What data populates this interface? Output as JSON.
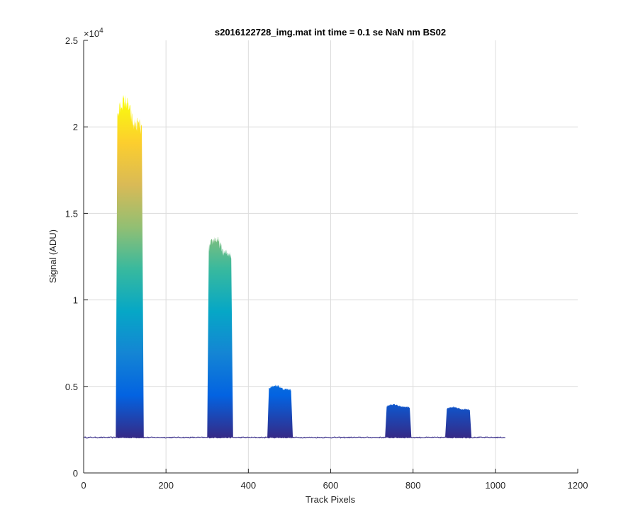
{
  "chart_data": {
    "type": "line",
    "title": "s2016122728_img.mat int time = 0.1 se  NaN nm BS02",
    "xlabel": "Track Pixels",
    "ylabel": "Signal (ADU)",
    "xlim": [
      0,
      1200
    ],
    "ylim": [
      0,
      25000
    ],
    "x_ticks": [
      0,
      200,
      400,
      600,
      800,
      1000,
      1200
    ],
    "x_tick_labels": [
      "0",
      "200",
      "400",
      "600",
      "800",
      "1000",
      "1200"
    ],
    "y_ticks": [
      0,
      5000,
      10000,
      15000,
      20000,
      25000
    ],
    "y_tick_labels": [
      "0",
      "0.5",
      "1",
      "1.5",
      "2",
      "2.5"
    ],
    "y_exponent_base": "×10",
    "y_exponent_power": "4",
    "grid": true,
    "baseline": 2050,
    "baseline_x_range": [
      0,
      1024
    ],
    "colormap": [
      "#352a87",
      "#0363e1",
      "#1485d4",
      "#06a7c6",
      "#38b99e",
      "#92bf73",
      "#d9ba56",
      "#fcce2e",
      "#f9fb0e"
    ],
    "peaks": [
      {
        "x_start": 78,
        "x_end": 146,
        "peak_max": 21500
      },
      {
        "x_start": 300,
        "x_end": 363,
        "peak_max": 13500
      },
      {
        "x_start": 446,
        "x_end": 508,
        "peak_max": 5050
      },
      {
        "x_start": 732,
        "x_end": 796,
        "peak_max": 3950
      },
      {
        "x_start": 878,
        "x_end": 942,
        "peak_max": 3800
      }
    ]
  }
}
